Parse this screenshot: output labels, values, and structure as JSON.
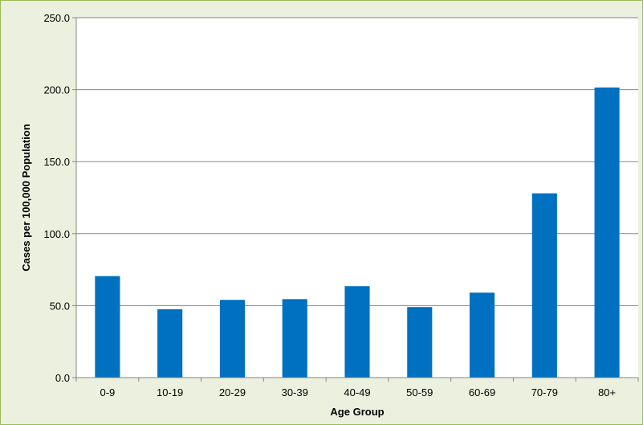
{
  "chart_data": {
    "type": "bar",
    "title": "",
    "xlabel": "Age Group",
    "ylabel": "Cases per 100,000 Population",
    "categories": [
      "0-9",
      "10-19",
      "20-29",
      "30-39",
      "40-49",
      "50-59",
      "60-69",
      "70-79",
      "80+"
    ],
    "values": [
      70.5,
      47.5,
      54.0,
      54.5,
      63.5,
      49.0,
      59.0,
      128.0,
      201.5
    ],
    "ylim": [
      0,
      250
    ],
    "yticks": [
      "0.0",
      "50.0",
      "100.0",
      "150.0",
      "200.0",
      "250.0"
    ],
    "grid": true,
    "legend": "none",
    "colors": {
      "bar": "#0070c0",
      "background": "#ebf1de",
      "border": "#9bbb59",
      "gridline": "#868686"
    }
  }
}
